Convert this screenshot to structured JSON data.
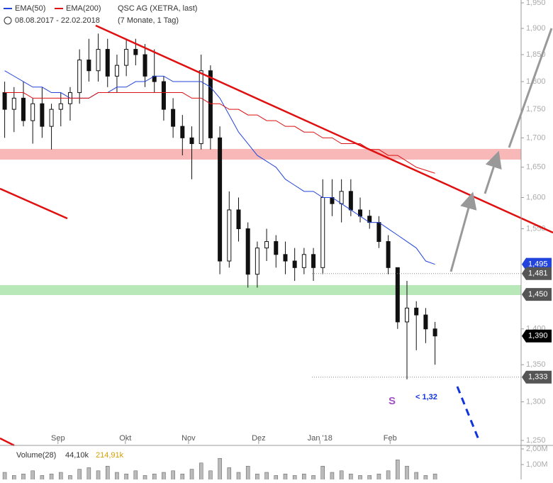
{
  "chart_data": {
    "type": "candlestick",
    "title": "QSC AG (XETRA, last)",
    "subtitle": "08.08.2017 - 22.02.2018",
    "period": "(7 Monate, 1 Tag)",
    "log_scale": true,
    "xlim": [
      -0.5,
      55.2
    ],
    "xticks": [
      {
        "value": 5.7,
        "label": "Sep"
      },
      {
        "value": 12.9,
        "label": "Okt"
      },
      {
        "value": 19.65,
        "label": "Nov"
      },
      {
        "value": 27.15,
        "label": "Dez"
      },
      {
        "value": 33.7,
        "label": "Jan '18"
      },
      {
        "value": 41.2,
        "label": "Feb"
      }
    ],
    "ylim": [
      1.25,
      1.95
    ],
    "yticks": [
      {
        "value": 1.95,
        "label": "1,950"
      },
      {
        "value": 1.9,
        "label": "1,900"
      },
      {
        "value": 1.85,
        "label": "1,850"
      },
      {
        "value": 1.8,
        "label": "1,800"
      },
      {
        "value": 1.75,
        "label": "1,750"
      },
      {
        "value": 1.7,
        "label": "1,700"
      },
      {
        "value": 1.65,
        "label": "1,650"
      },
      {
        "value": 1.6,
        "label": "1,600"
      },
      {
        "value": 1.55,
        "label": "1,550"
      },
      {
        "value": 1.4,
        "label": "1,400"
      },
      {
        "value": 1.35,
        "label": "1,350"
      },
      {
        "value": 1.3,
        "label": "1,300"
      },
      {
        "value": 1.25,
        "label": "1,250"
      }
    ],
    "candles": {
      "up_color": "#ffffff",
      "down_color": "#111111",
      "open": [
        1.78,
        1.75,
        1.77,
        1.73,
        1.76,
        1.72,
        1.75,
        1.76,
        1.78,
        1.84,
        1.82,
        1.86,
        1.81,
        1.83,
        1.86,
        1.85,
        1.81,
        1.8,
        1.75,
        1.72,
        1.7,
        1.69,
        1.82,
        1.7,
        1.5,
        1.58,
        1.55,
        1.48,
        1.52,
        1.53,
        1.51,
        1.5,
        1.49,
        1.51,
        1.49,
        1.6,
        1.59,
        1.61,
        1.58,
        1.57,
        1.56,
        1.53,
        1.49,
        1.41,
        1.43,
        1.42,
        1.4
      ],
      "high": [
        1.8,
        1.79,
        1.8,
        1.77,
        1.79,
        1.76,
        1.78,
        1.79,
        1.86,
        1.88,
        1.89,
        1.88,
        1.85,
        1.88,
        1.88,
        1.87,
        1.86,
        1.81,
        1.77,
        1.74,
        1.72,
        1.85,
        1.83,
        1.72,
        1.61,
        1.6,
        1.56,
        1.53,
        1.55,
        1.54,
        1.53,
        1.52,
        1.52,
        1.52,
        1.63,
        1.63,
        1.63,
        1.63,
        1.6,
        1.58,
        1.57,
        1.54,
        1.49,
        1.47,
        1.44,
        1.43,
        1.41
      ],
      "low": [
        1.7,
        1.71,
        1.72,
        1.69,
        1.7,
        1.68,
        1.72,
        1.73,
        1.76,
        1.8,
        1.8,
        1.79,
        1.78,
        1.81,
        1.83,
        1.79,
        1.78,
        1.73,
        1.7,
        1.67,
        1.63,
        1.68,
        1.68,
        1.48,
        1.49,
        1.53,
        1.46,
        1.46,
        1.5,
        1.49,
        1.48,
        1.47,
        1.48,
        1.47,
        1.48,
        1.57,
        1.56,
        1.57,
        1.56,
        1.55,
        1.52,
        1.48,
        1.4,
        1.33,
        1.37,
        1.38,
        1.35
      ],
      "close": [
        1.75,
        1.77,
        1.73,
        1.76,
        1.72,
        1.75,
        1.76,
        1.78,
        1.84,
        1.82,
        1.86,
        1.81,
        1.83,
        1.86,
        1.85,
        1.81,
        1.8,
        1.75,
        1.72,
        1.7,
        1.69,
        1.82,
        1.7,
        1.5,
        1.58,
        1.55,
        1.48,
        1.52,
        1.53,
        1.51,
        1.5,
        1.49,
        1.51,
        1.49,
        1.6,
        1.59,
        1.61,
        1.58,
        1.57,
        1.56,
        1.53,
        1.49,
        1.41,
        1.43,
        1.42,
        1.4,
        1.39
      ]
    },
    "series": [
      {
        "name": "EMA(50)",
        "color": "#2244dd",
        "values": [
          1.82,
          1.81,
          1.8,
          1.79,
          1.79,
          1.78,
          1.78,
          1.77,
          1.77,
          1.77,
          1.78,
          1.78,
          1.79,
          1.79,
          1.8,
          1.8,
          1.81,
          1.81,
          1.8,
          1.8,
          1.8,
          1.8,
          1.79,
          1.77,
          1.74,
          1.71,
          1.69,
          1.67,
          1.66,
          1.65,
          1.63,
          1.62,
          1.61,
          1.61,
          1.6,
          1.6,
          1.59,
          1.58,
          1.57,
          1.56,
          1.56,
          1.55,
          1.54,
          1.53,
          1.52,
          1.5,
          1.495
        ]
      },
      {
        "name": "EMA(200)",
        "color": "#dd1111",
        "values": [
          1.78,
          1.78,
          1.78,
          1.77,
          1.77,
          1.77,
          1.77,
          1.77,
          1.77,
          1.77,
          1.78,
          1.78,
          1.78,
          1.78,
          1.78,
          1.78,
          1.78,
          1.78,
          1.78,
          1.78,
          1.77,
          1.77,
          1.76,
          1.76,
          1.75,
          1.75,
          1.74,
          1.74,
          1.73,
          1.73,
          1.72,
          1.72,
          1.71,
          1.71,
          1.7,
          1.7,
          1.69,
          1.69,
          1.69,
          1.68,
          1.68,
          1.67,
          1.67,
          1.66,
          1.65,
          1.645,
          1.64
        ]
      }
    ],
    "price_labels": [
      {
        "value": 1.495,
        "label": "1,495",
        "color": "#2244dd"
      },
      {
        "value": 1.481,
        "label": "1,481",
        "color": "#555555"
      },
      {
        "value": 1.45,
        "label": "1,450",
        "color": "#555555"
      },
      {
        "value": 1.39,
        "label": "1,390",
        "color": "#000000"
      },
      {
        "value": 1.333,
        "label": "1,333",
        "color": "#555555"
      }
    ],
    "annotations": [
      "S",
      "< 1,32"
    ],
    "volume": {
      "name": "Volume(28)",
      "avg1": "44,10k",
      "avg2": "214,91k",
      "ylim": [
        0,
        2.0
      ],
      "yticks": [
        {
          "value": 2.0,
          "label": "2,00M"
        },
        {
          "value": 1.0,
          "label": "1,00M"
        }
      ],
      "values": [
        0.5,
        0.3,
        0.4,
        0.6,
        0.3,
        0.4,
        0.5,
        0.3,
        0.7,
        0.8,
        0.6,
        0.9,
        0.5,
        0.4,
        0.6,
        0.3,
        0.4,
        0.5,
        0.6,
        0.4,
        0.7,
        1.1,
        0.6,
        1.4,
        0.8,
        0.5,
        0.9,
        0.4,
        0.5,
        0.3,
        0.4,
        0.3,
        0.4,
        0.3,
        0.9,
        0.5,
        0.6,
        0.4,
        0.3,
        0.3,
        0.4,
        0.6,
        1.3,
        0.9,
        0.5,
        0.3,
        0.4
      ]
    }
  }
}
